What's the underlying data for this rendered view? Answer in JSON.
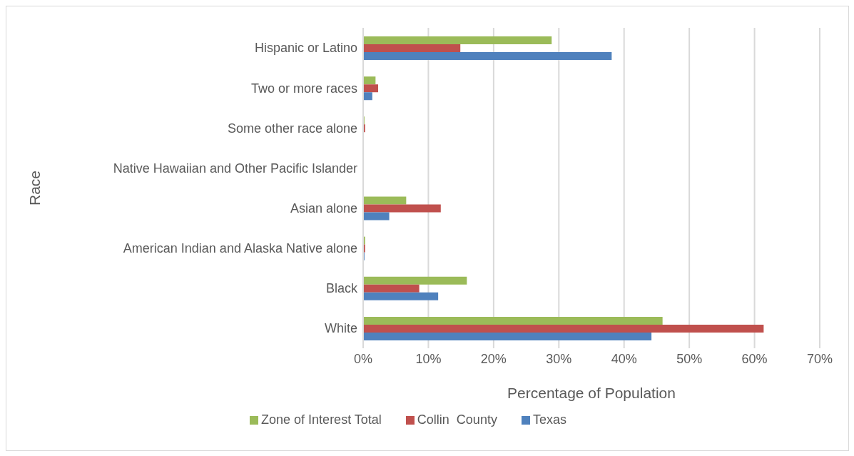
{
  "chart_data": {
    "type": "bar",
    "orientation": "horizontal",
    "xlabel": "Percentage of Population",
    "ylabel": "Race",
    "categories": [
      "Hispanic or Latino",
      "Two or more races",
      "Some other race alone",
      "Native Hawaiian and Other Pacific Islander",
      "Asian alone",
      "American Indian and Alaska Native alone",
      "Black",
      "White"
    ],
    "series": [
      {
        "name": "Zone of Interest Total",
        "color": "#9bbb59",
        "values": [
          28.9,
          1.9,
          0.2,
          0,
          6.6,
          0.3,
          15.9,
          45.9
        ]
      },
      {
        "name": "Collin  County",
        "color": "#c0504d",
        "values": [
          14.9,
          2.3,
          0.3,
          0,
          11.9,
          0.3,
          8.6,
          61.4
        ]
      },
      {
        "name": "Texas",
        "color": "#4f81bd",
        "values": [
          38.1,
          1.4,
          null,
          0,
          4.0,
          0.2,
          11.5,
          44.2
        ]
      }
    ],
    "xlim": [
      0,
      70
    ],
    "xticks": [
      {
        "value": 0,
        "label": "0%"
      },
      {
        "value": 10,
        "label": "10%"
      },
      {
        "value": 20,
        "label": "20%"
      },
      {
        "value": 30,
        "label": "30%"
      },
      {
        "value": 40,
        "label": "40%"
      },
      {
        "value": 50,
        "label": "50%"
      },
      {
        "value": 60,
        "label": "60%"
      },
      {
        "value": 70,
        "label": "70%"
      }
    ],
    "grid": "x",
    "legend": "bottom"
  }
}
